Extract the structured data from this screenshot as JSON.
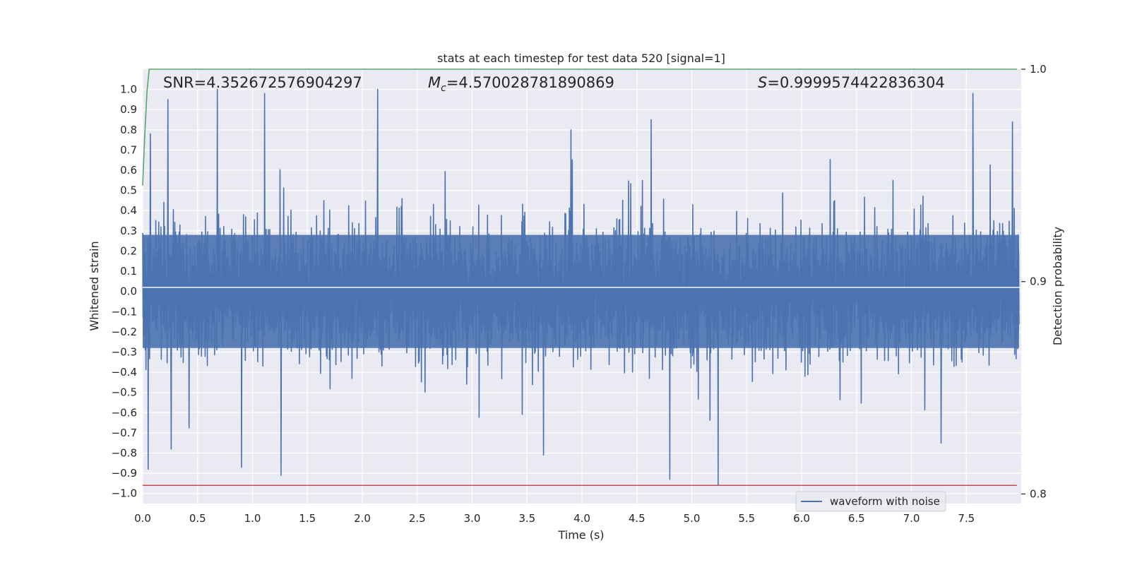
{
  "chart_data": {
    "type": "line",
    "title": "stats at each timestep for test data 520 [signal=1]",
    "xlabel": "Time (s)",
    "ylabel": "Whitened strain",
    "y2label": "Detection probability",
    "xlim": [
      0,
      8
    ],
    "ylim": [
      -1.05,
      1.1
    ],
    "y2lim": [
      0.7955,
      1.0
    ],
    "x_ticks": [
      "0.0",
      "0.5",
      "1.0",
      "1.5",
      "2.0",
      "2.5",
      "3.0",
      "3.5",
      "4.0",
      "4.5",
      "5.0",
      "5.5",
      "6.0",
      "6.5",
      "7.0",
      "7.5"
    ],
    "y_ticks": [
      "1.0",
      "0.9",
      "0.8",
      "0.7",
      "0.6",
      "0.5",
      "0.4",
      "0.3",
      "0.2",
      "0.1",
      "0.0",
      "-0.1",
      "-0.2",
      "-0.3",
      "-0.4",
      "-0.5",
      "-0.6",
      "-0.7",
      "-0.8",
      "-0.9",
      "-1.0"
    ],
    "y2_ticks": [
      "1.0",
      "0.9",
      "0.8"
    ],
    "grid": true,
    "legend": {
      "placement": "lower-center-right",
      "entries": [
        "waveform with noise"
      ]
    },
    "annotations": {
      "snr": "SNR=4.352672576904297",
      "mc_symbol": "M",
      "mc_subscript": "c",
      "mc_value": "=4.570028781890869",
      "s_symbol": "S",
      "s_value": "=0.9999574422836304"
    },
    "series": [
      {
        "name": "waveform with noise",
        "axis": "left",
        "color": "#4c72b0",
        "style": "noise",
        "seed": 520,
        "sample_count": 2400,
        "min": -1.0,
        "max": 1.0,
        "peaks": [
          {
            "x": 0.23,
            "y": 0.95
          },
          {
            "x": 0.68,
            "y": 1.0
          },
          {
            "x": 1.11,
            "y": 0.98
          },
          {
            "x": 2.14,
            "y": 1.0
          },
          {
            "x": 7.56,
            "y": 0.98
          },
          {
            "x": 0.07,
            "y": 0.78
          },
          {
            "x": 3.9,
            "y": 0.8
          },
          {
            "x": 4.63,
            "y": 0.85
          },
          {
            "x": 7.92,
            "y": 0.84
          },
          {
            "x": 0.05,
            "y": -0.88
          },
          {
            "x": 0.26,
            "y": -0.78
          },
          {
            "x": 0.9,
            "y": -0.87
          },
          {
            "x": 1.26,
            "y": -0.91
          },
          {
            "x": 4.8,
            "y": -0.93
          },
          {
            "x": 5.24,
            "y": -0.96
          },
          {
            "x": 3.65,
            "y": -0.81
          },
          {
            "x": 7.27,
            "y": -0.75
          }
        ]
      },
      {
        "name": "",
        "axis": "right",
        "color": "#55a868",
        "points": [
          [
            0.0,
            0.9452
          ],
          [
            0.02,
            0.97
          ],
          [
            0.04,
            0.99
          ],
          [
            0.06,
            1.0
          ],
          [
            7.96,
            1.0
          ]
        ]
      },
      {
        "name": "",
        "axis": "left",
        "color": "#c44e52",
        "points": [
          [
            0.0,
            -0.96
          ],
          [
            7.96,
            -0.96
          ]
        ]
      }
    ]
  }
}
